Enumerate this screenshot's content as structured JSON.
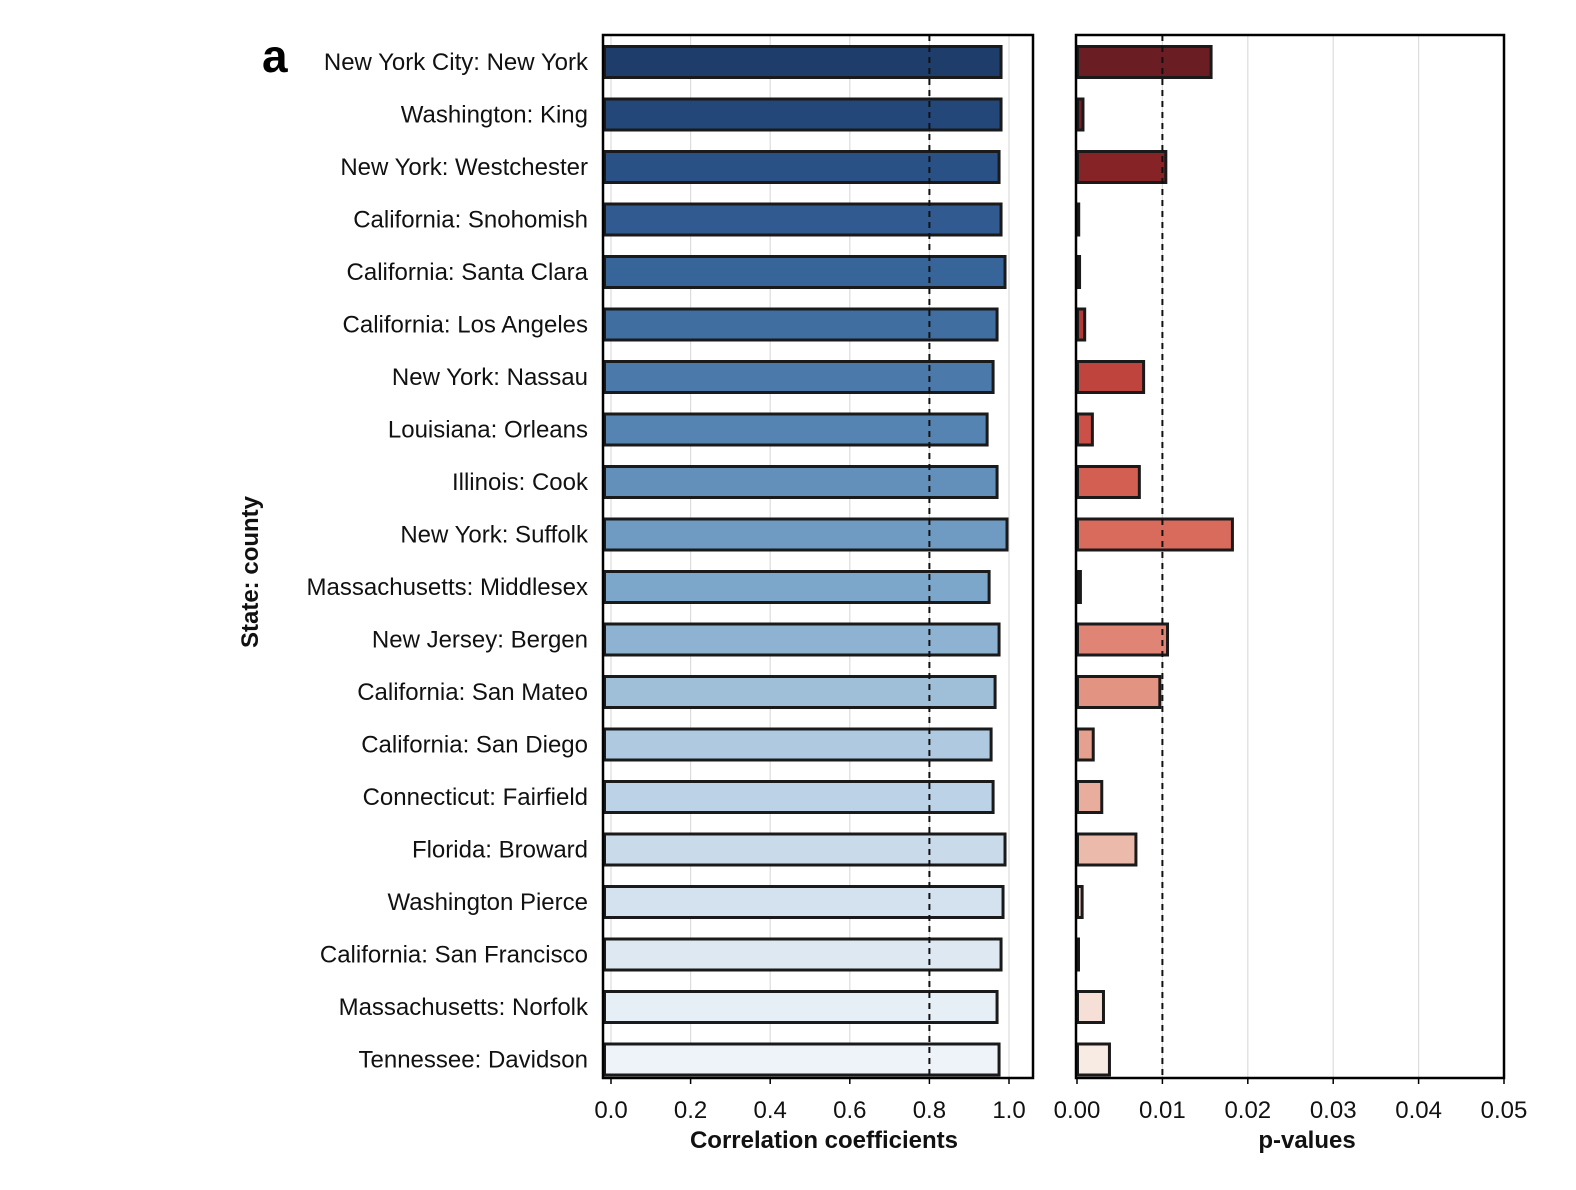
{
  "panel_letter": "a",
  "chart_data": [
    {
      "type": "bar",
      "orientation": "horizontal",
      "xlabel": "Correlation coefficients",
      "ylabel": "State: county",
      "xlim": [
        0,
        1.05
      ],
      "xticks": [
        "0.0",
        "0.2",
        "0.4",
        "0.6",
        "0.8",
        "1.0"
      ],
      "reference_line": 0.8,
      "grid": "vertical",
      "color_scheme": "Blues (dark to light, top to bottom)",
      "colors": [
        "#1f3d6b",
        "#234779",
        "#2a5186",
        "#315b90",
        "#386599",
        "#416ea1",
        "#4b79aa",
        "#5684b2",
        "#6290ba",
        "#6f9bc2",
        "#7da7ca",
        "#8eb3d2",
        "#9fbfd9",
        "#afcae0",
        "#bcd2e6",
        "#c9dbeb",
        "#d4e2ef",
        "#dee8f3",
        "#e6eef6",
        "#eef3f9"
      ],
      "categories": [
        "New York City: New York",
        "Washington: King",
        "New York: Westchester",
        "California: Snohomish",
        "California: Santa Clara",
        "California: Los Angeles",
        "New York: Nassau",
        "Louisiana: Orleans",
        "Illinois: Cook",
        "New York: Suffolk",
        "Massachusetts: Middlesex",
        "New Jersey: Bergen",
        "California: San Mateo",
        "California: San Diego",
        "Connecticut: Fairfield",
        "Florida: Broward",
        "Washington Pierce",
        "California: San Francisco",
        "Massachusetts: Norfolk",
        "Tennessee: Davidson"
      ],
      "values": [
        0.98,
        0.98,
        0.975,
        0.98,
        0.99,
        0.97,
        0.96,
        0.945,
        0.97,
        0.995,
        0.95,
        0.975,
        0.965,
        0.955,
        0.96,
        0.99,
        0.985,
        0.98,
        0.97,
        0.975
      ]
    },
    {
      "type": "bar",
      "orientation": "horizontal",
      "xlabel": "p-values",
      "xlim": [
        0,
        0.05
      ],
      "xticks": [
        "0.00",
        "0.01",
        "0.02",
        "0.03",
        "0.04",
        "0.05"
      ],
      "reference_line": 0.01,
      "grid": "vertical",
      "color_scheme": "Reds (dark to light, top to bottom)",
      "colors": [
        "#6a1d22",
        "#761f24",
        "#862326",
        "#962a2c",
        "#a5302f",
        "#b33a36",
        "#c0443e",
        "#cb5148",
        "#d35f52",
        "#d96b5d",
        "#dd7869",
        "#e08575",
        "#e39382",
        "#e6a08f",
        "#e9ad9d",
        "#ecbaab",
        "#efc6b9",
        "#f2d3c8",
        "#f5dfd6",
        "#f8ebe4"
      ],
      "categories": [
        "New York City: New York",
        "Washington: King",
        "New York: Westchester",
        "California: Snohomish",
        "California: Santa Clara",
        "California: Los Angeles",
        "New York: Nassau",
        "Louisiana: Orleans",
        "Illinois: Cook",
        "New York: Suffolk",
        "Massachusetts: Middlesex",
        "New Jersey: Bergen",
        "California: San Mateo",
        "California: San Diego",
        "Connecticut: Fairfield",
        "Florida: Broward",
        "Washington Pierce",
        "California: San Francisco",
        "Massachusetts: Norfolk",
        "Tennessee: Davidson"
      ],
      "values": [
        0.0157,
        0.0007,
        0.0104,
        0.0002,
        0.0003,
        0.0009,
        0.0078,
        0.0018,
        0.0073,
        0.0182,
        0.0004,
        0.0106,
        0.0097,
        0.0019,
        0.0029,
        0.0069,
        0.0006,
        0.0001,
        0.0031,
        0.0038
      ]
    }
  ]
}
